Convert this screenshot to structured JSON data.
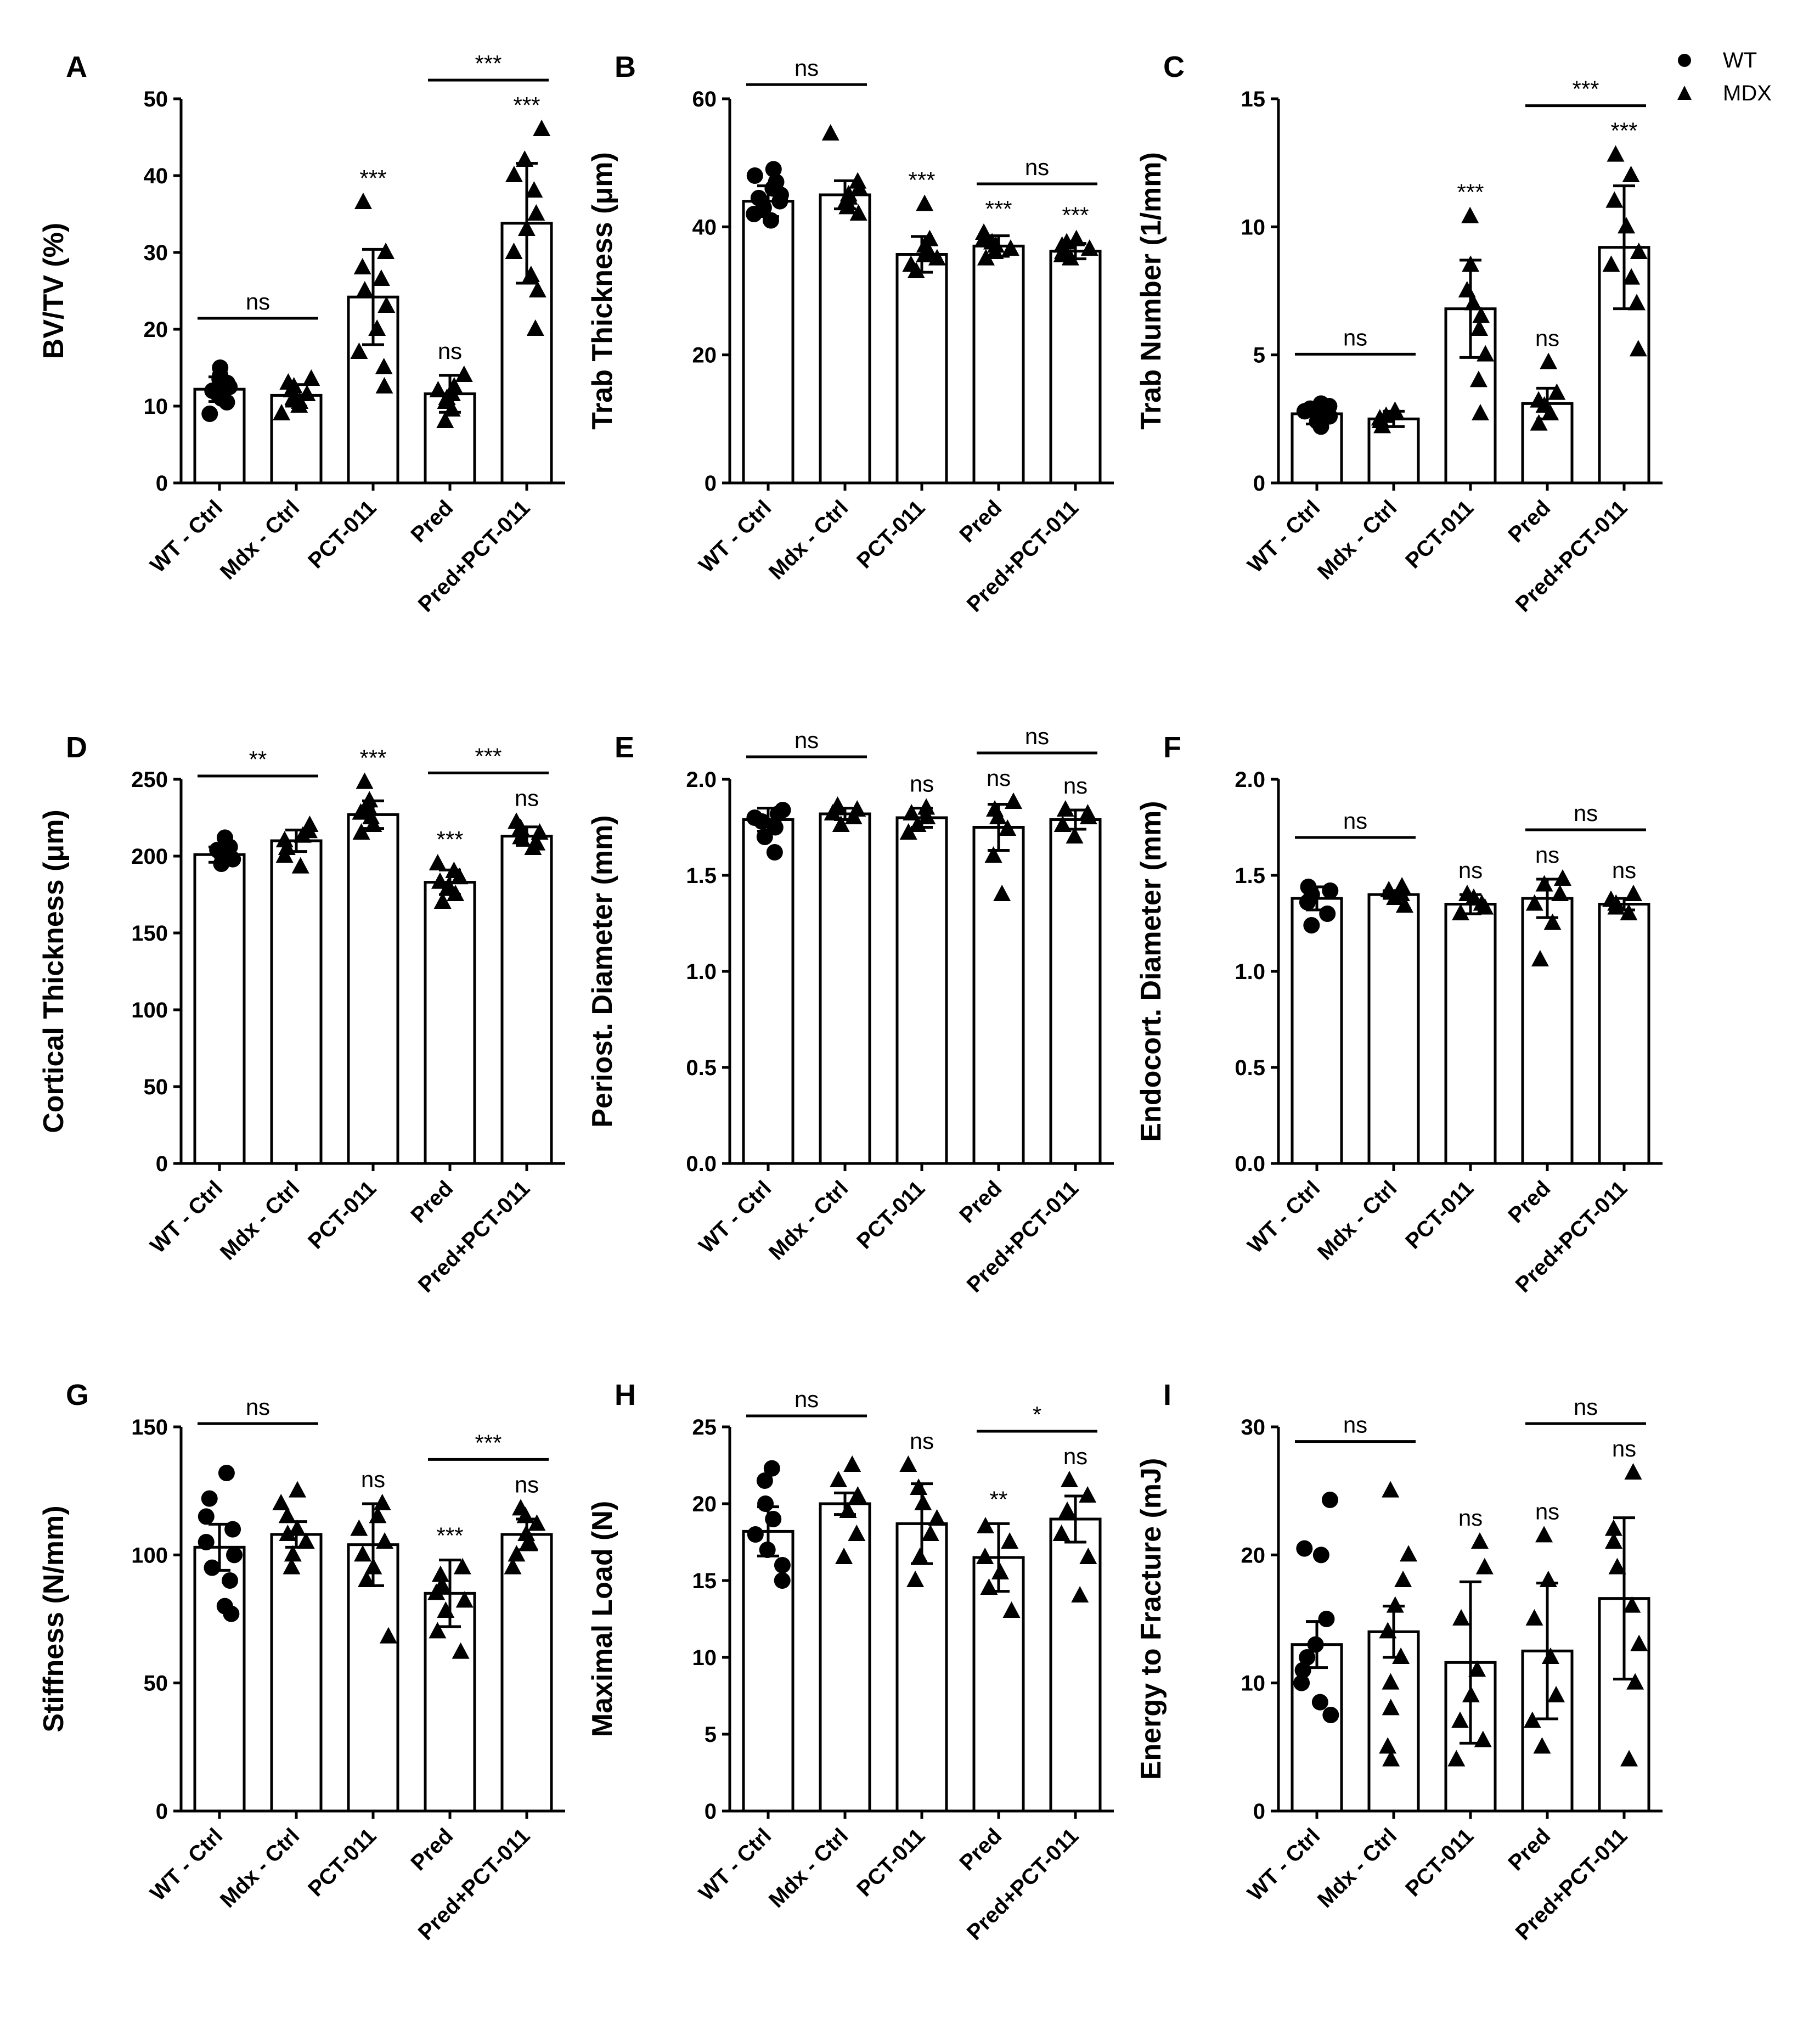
{
  "figure": {
    "legend": [
      {
        "label": "WT",
        "marker": "circle"
      },
      {
        "label": "MDX",
        "marker": "triangle"
      }
    ]
  },
  "colors": {
    "ink": "#000000",
    "bar_fill": "#ffffff"
  },
  "chart_data": [
    {
      "panel": "A",
      "type": "bar",
      "ylabel": "BV/TV (%)",
      "categories": [
        "WT - Ctrl",
        "Mdx - Ctrl",
        "PCT-011",
        "Pred",
        "Pred+PCT-011"
      ],
      "ylim": [
        0,
        50
      ],
      "yticks": [
        0,
        10,
        20,
        30,
        40,
        50
      ],
      "ytick_labels": [
        "0",
        "10",
        "20",
        "30",
        "40",
        "50"
      ],
      "values": [
        12.2,
        11.4,
        24.2,
        11.6,
        33.8
      ],
      "err": [
        1.6,
        1.4,
        6.2,
        2.4,
        7.8
      ],
      "markers": [
        "circle",
        "triangle",
        "triangle",
        "triangle",
        "triangle"
      ],
      "points": [
        [
          9,
          10.5,
          11,
          11.5,
          12,
          12.5,
          13,
          13.5,
          14,
          15
        ],
        [
          9,
          10,
          10.5,
          11,
          11.5,
          12,
          12.5,
          13,
          13.5
        ],
        [
          12.5,
          15,
          17,
          20,
          23,
          25,
          26.5,
          28,
          30,
          36.5
        ],
        [
          8,
          9.5,
          10.5,
          11,
          11.5,
          12,
          12.5,
          14
        ],
        [
          20,
          25,
          27,
          30,
          33,
          35,
          38,
          40,
          42,
          46
        ]
      ],
      "annotations": [
        {
          "type": "bracket",
          "from": 0,
          "to": 1,
          "label": "ns"
        },
        {
          "type": "bracket",
          "from": 3,
          "to": 4,
          "label": "***"
        },
        {
          "type": "label",
          "at": 2,
          "label": "***"
        },
        {
          "type": "label",
          "at": 3,
          "label": "ns"
        },
        {
          "type": "label",
          "at": 4,
          "label": "***"
        }
      ]
    },
    {
      "panel": "B",
      "type": "bar",
      "ylabel": "Trab Thickness (μm)",
      "categories": [
        "WT - Ctrl",
        "Mdx - Ctrl",
        "PCT-011",
        "Pred",
        "Pred+PCT-011"
      ],
      "ylim": [
        0,
        60
      ],
      "yticks": [
        0,
        20,
        40,
        60
      ],
      "ytick_labels": [
        "0",
        "20",
        "40",
        "60"
      ],
      "values": [
        44,
        45,
        35.7,
        37,
        36.2
      ],
      "err": [
        2.4,
        2.2,
        2.8,
        1.6,
        1.2
      ],
      "markers": [
        "circle",
        "triangle",
        "triangle",
        "triangle",
        "triangle"
      ],
      "points": [
        [
          41,
          42,
          43,
          44,
          44.5,
          45,
          46,
          47,
          48,
          49
        ],
        [
          42,
          43,
          44,
          44.5,
          45,
          46,
          47,
          54.5
        ],
        [
          33,
          34,
          35,
          35.5,
          36,
          37,
          38,
          43.5
        ],
        [
          35,
          36,
          36.5,
          37,
          37.5,
          38,
          39
        ],
        [
          35,
          35.5,
          36,
          36.5,
          37,
          37.5,
          38
        ]
      ],
      "annotations": [
        {
          "type": "bracket",
          "from": 0,
          "to": 1,
          "label": "ns"
        },
        {
          "type": "bracket",
          "from": 3,
          "to": 4,
          "label": "ns"
        },
        {
          "type": "label",
          "at": 2,
          "label": "***"
        },
        {
          "type": "label",
          "at": 3,
          "label": "***"
        },
        {
          "type": "label",
          "at": 4,
          "label": "***"
        }
      ]
    },
    {
      "panel": "C",
      "type": "bar",
      "ylabel": "Trab Number (1/mm)",
      "categories": [
        "WT - Ctrl",
        "Mdx - Ctrl",
        "PCT-011",
        "Pred",
        "Pred+PCT-011"
      ],
      "ylim": [
        0,
        15
      ],
      "yticks": [
        0,
        5,
        10,
        15
      ],
      "ytick_labels": [
        "0",
        "5",
        "10",
        "15"
      ],
      "values": [
        2.7,
        2.5,
        6.8,
        3.1,
        9.2
      ],
      "err": [
        0.4,
        0.3,
        1.9,
        0.6,
        2.4
      ],
      "markers": [
        "circle",
        "triangle",
        "triangle",
        "triangle",
        "triangle"
      ],
      "points": [
        [
          2.2,
          2.4,
          2.6,
          2.7,
          2.8,
          2.9,
          3.0,
          3.1
        ],
        [
          2.2,
          2.4,
          2.5,
          2.6,
          2.7,
          2.8
        ],
        [
          2.7,
          4,
          5,
          6,
          6.5,
          7,
          7.5,
          8.5,
          10.4
        ],
        [
          2.3,
          2.7,
          3.0,
          3.2,
          3.5,
          4.7
        ],
        [
          5.2,
          7,
          8,
          8.5,
          9,
          10,
          11,
          12,
          12.8
        ]
      ],
      "annotations": [
        {
          "type": "bracket",
          "from": 0,
          "to": 1,
          "label": "ns"
        },
        {
          "type": "bracket",
          "from": 3,
          "to": 4,
          "label": "***"
        },
        {
          "type": "label",
          "at": 2,
          "label": "***"
        },
        {
          "type": "label",
          "at": 3,
          "label": "ns"
        },
        {
          "type": "label",
          "at": 4,
          "label": "***"
        }
      ]
    },
    {
      "panel": "D",
      "type": "bar",
      "ylabel": "Cortical Thickness (μm)",
      "categories": [
        "WT - Ctrl",
        "Mdx - Ctrl",
        "PCT-011",
        "Pred",
        "Pred+PCT-011"
      ],
      "ylim": [
        0,
        250
      ],
      "yticks": [
        0,
        50,
        100,
        150,
        200,
        250
      ],
      "ytick_labels": [
        "0",
        "50",
        "100",
        "150",
        "200",
        "250"
      ],
      "values": [
        201,
        210,
        227,
        183,
        213
      ],
      "err": [
        5,
        7,
        9,
        8,
        6
      ],
      "markers": [
        "circle",
        "triangle",
        "triangle",
        "triangle",
        "triangle"
      ],
      "points": [
        [
          195,
          198,
          200,
          202,
          204,
          206,
          212
        ],
        [
          193,
          200,
          205,
          210,
          213,
          216,
          220
        ],
        [
          215,
          220,
          225,
          228,
          232,
          236,
          248
        ],
        [
          170,
          175,
          180,
          183,
          186,
          190,
          195
        ],
        [
          205,
          208,
          212,
          215,
          218,
          222
        ]
      ],
      "annotations": [
        {
          "type": "bracket",
          "from": 0,
          "to": 1,
          "label": "**"
        },
        {
          "type": "bracket",
          "from": 3,
          "to": 4,
          "label": "***"
        },
        {
          "type": "label",
          "at": 2,
          "label": "***"
        },
        {
          "type": "label",
          "at": 3,
          "label": "***"
        },
        {
          "type": "label",
          "at": 4,
          "label": "ns"
        }
      ]
    },
    {
      "panel": "E",
      "type": "bar",
      "ylabel": "Periost. Diameter (mm)",
      "categories": [
        "WT - Ctrl",
        "Mdx - Ctrl",
        "PCT-011",
        "Pred",
        "Pred+PCT-011"
      ],
      "ylim": [
        0,
        2
      ],
      "yticks": [
        0,
        0.5,
        1,
        1.5,
        2
      ],
      "ytick_labels": [
        "0.0",
        "0.5",
        "1.0",
        "1.5",
        "2.0"
      ],
      "values": [
        1.79,
        1.82,
        1.8,
        1.75,
        1.79
      ],
      "err": [
        0.06,
        0.03,
        0.05,
        0.12,
        0.05
      ],
      "markers": [
        "circle",
        "triangle",
        "triangle",
        "triangle",
        "triangle"
      ],
      "points": [
        [
          1.62,
          1.7,
          1.75,
          1.78,
          1.8,
          1.82,
          1.84
        ],
        [
          1.76,
          1.8,
          1.82,
          1.84,
          1.86
        ],
        [
          1.72,
          1.76,
          1.8,
          1.82,
          1.85
        ],
        [
          1.4,
          1.6,
          1.74,
          1.8,
          1.84,
          1.88
        ],
        [
          1.7,
          1.76,
          1.8,
          1.82,
          1.84
        ]
      ],
      "annotations": [
        {
          "type": "bracket",
          "from": 0,
          "to": 1,
          "label": "ns"
        },
        {
          "type": "bracket",
          "from": 3,
          "to": 4,
          "label": "ns"
        },
        {
          "type": "label",
          "at": 2,
          "label": "ns"
        },
        {
          "type": "label",
          "at": 3,
          "label": "ns"
        },
        {
          "type": "label",
          "at": 4,
          "label": "ns"
        }
      ]
    },
    {
      "panel": "F",
      "type": "bar",
      "ylabel": "Endocort. Diameter (mm)",
      "categories": [
        "WT - Ctrl",
        "Mdx - Ctrl",
        "PCT-011",
        "Pred",
        "Pred+PCT-011"
      ],
      "ylim": [
        0,
        2
      ],
      "yticks": [
        0,
        0.5,
        1,
        1.5,
        2
      ],
      "ytick_labels": [
        "0.0",
        "0.5",
        "1.0",
        "1.5",
        "2.0"
      ],
      "values": [
        1.38,
        1.4,
        1.35,
        1.38,
        1.35
      ],
      "err": [
        0.06,
        0.02,
        0.05,
        0.1,
        0.03
      ],
      "markers": [
        "circle",
        "triangle",
        "triangle",
        "triangle",
        "triangle"
      ],
      "points": [
        [
          1.24,
          1.3,
          1.36,
          1.4,
          1.42,
          1.44
        ],
        [
          1.34,
          1.38,
          1.4,
          1.42,
          1.44
        ],
        [
          1.3,
          1.33,
          1.35,
          1.38,
          1.4
        ],
        [
          1.06,
          1.25,
          1.35,
          1.4,
          1.45,
          1.48
        ],
        [
          1.3,
          1.33,
          1.35,
          1.37,
          1.4
        ]
      ],
      "annotations": [
        {
          "type": "bracket",
          "from": 0,
          "to": 1,
          "label": "ns"
        },
        {
          "type": "bracket",
          "from": 3,
          "to": 4,
          "label": "ns"
        },
        {
          "type": "label",
          "at": 2,
          "label": "ns"
        },
        {
          "type": "label",
          "at": 3,
          "label": "ns"
        },
        {
          "type": "label",
          "at": 4,
          "label": "ns"
        }
      ]
    },
    {
      "panel": "G",
      "type": "bar",
      "ylabel": "Stiffness (N/mm)",
      "categories": [
        "WT - Ctrl",
        "Mdx - Ctrl",
        "PCT-011",
        "Pred",
        "Pred+PCT-011"
      ],
      "ylim": [
        0,
        150
      ],
      "yticks": [
        0,
        50,
        100,
        150
      ],
      "ytick_labels": [
        "0",
        "50",
        "100",
        "150"
      ],
      "values": [
        103,
        108,
        104,
        85,
        108
      ],
      "err": [
        9,
        5,
        16,
        13,
        6
      ],
      "markers": [
        "circle",
        "triangle",
        "triangle",
        "triangle",
        "triangle"
      ],
      "points": [
        [
          77,
          80,
          90,
          95,
          100,
          105,
          110,
          115,
          122,
          132
        ],
        [
          95,
          100,
          105,
          108,
          110,
          115,
          120,
          125
        ],
        [
          68,
          90,
          95,
          100,
          105,
          110,
          115,
          120
        ],
        [
          62,
          70,
          78,
          82,
          85,
          88,
          92,
          95
        ],
        [
          95,
          100,
          105,
          108,
          112,
          115,
          118
        ]
      ],
      "annotations": [
        {
          "type": "bracket",
          "from": 0,
          "to": 1,
          "label": "ns"
        },
        {
          "type": "bracket",
          "from": 3,
          "to": 4,
          "label": "***"
        },
        {
          "type": "label",
          "at": 2,
          "label": "ns"
        },
        {
          "type": "label",
          "at": 3,
          "label": "***"
        },
        {
          "type": "label",
          "at": 4,
          "label": "ns"
        }
      ]
    },
    {
      "panel": "H",
      "type": "bar",
      "ylabel": "Maximal Load (N)",
      "categories": [
        "WT - Ctrl",
        "Mdx - Ctrl",
        "PCT-011",
        "Pred",
        "Pred+PCT-011"
      ],
      "ylim": [
        0,
        25
      ],
      "yticks": [
        0,
        5,
        10,
        15,
        20,
        25
      ],
      "ytick_labels": [
        "0",
        "5",
        "10",
        "15",
        "20",
        "25"
      ],
      "values": [
        18.2,
        20,
        18.7,
        16.5,
        19
      ],
      "err": [
        1.6,
        0.7,
        2.6,
        2.2,
        1.5
      ],
      "markers": [
        "circle",
        "triangle",
        "triangle",
        "triangle",
        "triangle"
      ],
      "points": [
        [
          15,
          16,
          17,
          18,
          19,
          20,
          21.5,
          22.3
        ],
        [
          16.5,
          18,
          19.5,
          20.5,
          21.5,
          22.5
        ],
        [
          15,
          16.5,
          18,
          19,
          20,
          21,
          22.5
        ],
        [
          13,
          14.5,
          15.5,
          16.5,
          17.5,
          18.5
        ],
        [
          14,
          16.5,
          18,
          19.5,
          20.5,
          21.5
        ]
      ],
      "annotations": [
        {
          "type": "bracket",
          "from": 0,
          "to": 1,
          "label": "ns"
        },
        {
          "type": "bracket",
          "from": 3,
          "to": 4,
          "label": "*"
        },
        {
          "type": "label",
          "at": 2,
          "label": "ns"
        },
        {
          "type": "label",
          "at": 3,
          "label": "**"
        },
        {
          "type": "label",
          "at": 4,
          "label": "ns"
        }
      ]
    },
    {
      "panel": "I",
      "type": "bar",
      "ylabel": "Energy to Fracture (mJ)",
      "categories": [
        "WT - Ctrl",
        "Mdx - Ctrl",
        "PCT-011",
        "Pred",
        "Pred+PCT-011"
      ],
      "ylim": [
        0,
        30
      ],
      "yticks": [
        0,
        10,
        20,
        30
      ],
      "ytick_labels": [
        "0",
        "10",
        "20",
        "30"
      ],
      "values": [
        13,
        14,
        11.6,
        12.5,
        16.6
      ],
      "err": [
        1.8,
        2,
        6.3,
        5.3,
        6.3
      ],
      "markers": [
        "circle",
        "triangle",
        "triangle",
        "triangle",
        "triangle"
      ],
      "points": [
        [
          7.5,
          8.5,
          10,
          11,
          12,
          13,
          15,
          20,
          20.5,
          24.3
        ],
        [
          4,
          5,
          8,
          10,
          12,
          14,
          16,
          18,
          20,
          25
        ],
        [
          4,
          5.5,
          7,
          9,
          11,
          15,
          19,
          21
        ],
        [
          5,
          7,
          9,
          12,
          15,
          18,
          21.5
        ],
        [
          4,
          10,
          13,
          16,
          19,
          21,
          22,
          26.4
        ]
      ],
      "annotations": [
        {
          "type": "bracket",
          "from": 0,
          "to": 1,
          "label": "ns"
        },
        {
          "type": "bracket",
          "from": 3,
          "to": 4,
          "label": "ns"
        },
        {
          "type": "label",
          "at": 2,
          "label": "ns"
        },
        {
          "type": "label",
          "at": 3,
          "label": "ns"
        },
        {
          "type": "label",
          "at": 4,
          "label": "ns"
        }
      ]
    }
  ]
}
